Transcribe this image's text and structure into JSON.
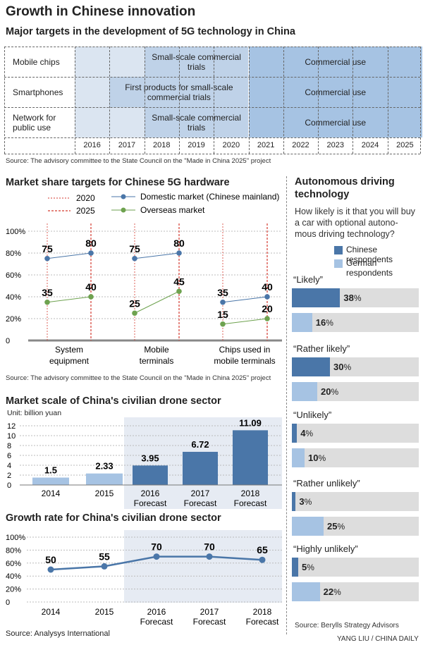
{
  "page_title": "Growth in Chinese innovation",
  "credit": "YANG LIU / CHINA DAILY",
  "colors": {
    "dark_blue": "#4a76a8",
    "light_blue": "#a6c3e3",
    "pale_blue": "#dbe5f1",
    "mid_blue": "#bfd2e8",
    "shade": "#e6ebf3",
    "grey_bar": "#dddddd",
    "green": "#6ea24f",
    "red": "#d43a2f",
    "line_blue": "#4a76a8"
  },
  "targets": {
    "title": "Major targets in the development of 5G technology in China",
    "source": "Source: The advisory committee to the State Council on the \"Made in China 2025\" project",
    "years": [
      "2016",
      "2017",
      "2018",
      "2019",
      "2020",
      "2021",
      "2022",
      "2023",
      "2024",
      "2025"
    ],
    "rows": [
      {
        "label": "Mobile chips",
        "segments": [
          {
            "from": 0,
            "to": 2,
            "shade": "pale",
            "text": ""
          },
          {
            "from": 2,
            "to": 5,
            "shade": "mid",
            "text": "Small-scale commercial trials"
          },
          {
            "from": 5,
            "to": 10,
            "shade": "dark",
            "text": "Commercial use"
          }
        ]
      },
      {
        "label": "Smartphones",
        "segments": [
          {
            "from": 0,
            "to": 1,
            "shade": "pale",
            "text": ""
          },
          {
            "from": 1,
            "to": 5,
            "shade": "mid",
            "text": "First products for small-scale commercial trials"
          },
          {
            "from": 5,
            "to": 10,
            "shade": "dark",
            "text": "Commercial use"
          }
        ]
      },
      {
        "label": "Network for public use",
        "segments": [
          {
            "from": 0,
            "to": 2,
            "shade": "pale",
            "text": ""
          },
          {
            "from": 2,
            "to": 5,
            "shade": "mid",
            "text": "Small-scale commercial trials"
          },
          {
            "from": 5,
            "to": 10,
            "shade": "dark",
            "text": "Commercial use"
          }
        ]
      }
    ]
  },
  "market_share": {
    "title": "Market share targets for Chinese 5G hardware",
    "source": "Source: The advisory committee to the State Council on the \"Made in China 2025\" project",
    "legend_2020": "2020",
    "legend_2025": "2025",
    "legend_domestic": "Domestic market (Chinese mainland)",
    "legend_overseas": "Overseas market",
    "y_ticks": [
      "0",
      "20%",
      "40%",
      "60%",
      "80%",
      "100%"
    ]
  },
  "drone_scale": {
    "title": "Market scale of China's civilian drone sector",
    "unit": "Unit: billion yuan",
    "y_ticks": [
      "0",
      "2",
      "4",
      "6",
      "8",
      "10",
      "12"
    ],
    "x_labels": [
      [
        "2014"
      ],
      [
        "2015"
      ],
      [
        "2016",
        "Forecast"
      ],
      [
        "2017",
        "Forecast"
      ],
      [
        "2018",
        "Forecast"
      ]
    ]
  },
  "drone_growth": {
    "title": "Growth rate for China's civilian drone sector",
    "source": "Source: Analysys International",
    "y_ticks": [
      "0",
      "20%",
      "40%",
      "60%",
      "80%",
      "100%"
    ],
    "x_labels": [
      [
        "2014"
      ],
      [
        "2015"
      ],
      [
        "2016",
        "Forecast"
      ],
      [
        "2017",
        "Forecast"
      ],
      [
        "2018",
        "Forecast"
      ]
    ]
  },
  "autonomous": {
    "title_line1": "Autonomous driving",
    "title_line2": "technology",
    "question_line1": "How likely is it that you will buy",
    "question_line2": "a car with optional autono-",
    "question_line3": "mous driving technology?",
    "legend_chinese": "Chinese respondents",
    "legend_german": "German respondents",
    "source": "Source: Berylls Strategy Advisors"
  },
  "chart_data": [
    {
      "type": "line",
      "title": "Market share targets for Chinese 5G hardware",
      "ylim": [
        0,
        100
      ],
      "groups": [
        "System equipment",
        "Mobile terminals",
        "Chips used in mobile terminals"
      ],
      "x": [
        "2020",
        "2025"
      ],
      "series": [
        {
          "name": "Domestic market (Chinese mainland)",
          "values": [
            [
              75,
              80
            ],
            [
              75,
              80
            ],
            [
              35,
              40
            ]
          ]
        },
        {
          "name": "Overseas market",
          "values": [
            [
              35,
              40
            ],
            [
              25,
              45
            ],
            [
              15,
              20
            ]
          ]
        }
      ]
    },
    {
      "type": "bar",
      "title": "Market scale of China's civilian drone sector",
      "categories": [
        "2014",
        "2015",
        "2016 Forecast",
        "2017 Forecast",
        "2018 Forecast"
      ],
      "values": [
        1.5,
        2.33,
        3.95,
        6.72,
        11.09
      ],
      "value_labels": [
        "1.5",
        "2.33",
        "3.95",
        "6.72",
        "11.09"
      ],
      "ylabel": "Unit: billion yuan",
      "ylim": [
        0,
        12
      ]
    },
    {
      "type": "line",
      "title": "Growth rate for China's civilian drone sector",
      "categories": [
        "2014",
        "2015",
        "2016 Forecast",
        "2017 Forecast",
        "2018 Forecast"
      ],
      "values": [
        50,
        55,
        70,
        70,
        65
      ],
      "ylim": [
        0,
        100
      ]
    },
    {
      "type": "bar",
      "title": "Autonomous driving technology",
      "categories": [
        "“Likely”",
        "“Rather likely”",
        "“Unlikely”",
        "“Rather unlikely”",
        "“Highly unlikely”"
      ],
      "series": [
        {
          "name": "Chinese respondents",
          "values": [
            38,
            30,
            4,
            3,
            5
          ]
        },
        {
          "name": "German respondents",
          "values": [
            16,
            20,
            10,
            25,
            22
          ]
        }
      ],
      "xlim": [
        0,
        100
      ]
    }
  ]
}
